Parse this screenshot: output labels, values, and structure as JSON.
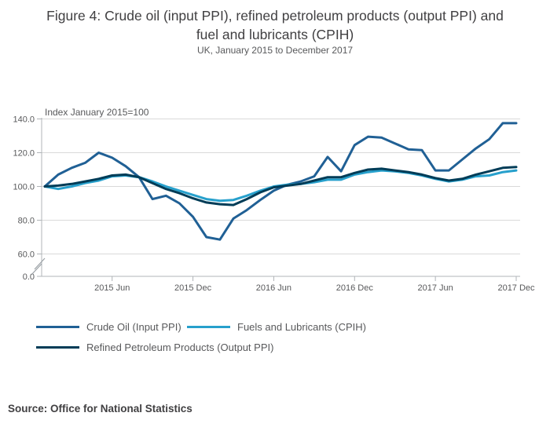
{
  "figure": {
    "title_line1": "Figure 4: Crude oil (input PPI), refined petroleum products (output PPI) and",
    "title_line2": "fuel and lubricants (CPIH)",
    "subtitle": "UK, January 2015 to December 2017",
    "source": "Source: Office for National Statistics"
  },
  "colors": {
    "crude": "#206095",
    "fuels": "#27A0CC",
    "refined": "#003C57",
    "grid": "#d9d9d9",
    "axis": "#b0b4b8",
    "tick_text": "#58595b"
  },
  "legend": {
    "items": [
      {
        "label": "Crude Oil (Input PPI)",
        "color": "#206095"
      },
      {
        "label": "Fuels and Lubricants (CPIH)",
        "color": "#27A0CC"
      },
      {
        "label": "Refined Petroleum Products (Output PPI)",
        "color": "#003C57"
      }
    ]
  },
  "chart_data": {
    "type": "line",
    "title": "Figure 4: Crude oil (input PPI), refined petroleum products (output PPI) and fuel and lubricants (CPIH)",
    "subtitle": "UK, January 2015 to December 2017",
    "axis_note": "Index January 2015=100",
    "grid": "horizontal",
    "legend_position": "bottom",
    "y_axis_break": true,
    "ylim": [
      0,
      140
    ],
    "y_ticks": [
      140,
      120,
      100,
      80,
      60,
      0
    ],
    "x": [
      "2015 Jan",
      "2015 Feb",
      "2015 Mar",
      "2015 Apr",
      "2015 May",
      "2015 Jun",
      "2015 Jul",
      "2015 Aug",
      "2015 Sep",
      "2015 Oct",
      "2015 Nov",
      "2015 Dec",
      "2016 Jan",
      "2016 Feb",
      "2016 Mar",
      "2016 Apr",
      "2016 May",
      "2016 Jun",
      "2016 Jul",
      "2016 Aug",
      "2016 Sep",
      "2016 Oct",
      "2016 Nov",
      "2016 Dec",
      "2017 Jan",
      "2017 Feb",
      "2017 Mar",
      "2017 Apr",
      "2017 May",
      "2017 Jun",
      "2017 Jul",
      "2017 Aug",
      "2017 Sep",
      "2017 Oct",
      "2017 Nov",
      "2017 Dec"
    ],
    "x_tick_labels": [
      "2015 Jun",
      "2015 Dec",
      "2016 Jun",
      "2016 Dec",
      "2017 Jun",
      "2017 Dec"
    ],
    "x_tick_indices": [
      5,
      11,
      17,
      23,
      29,
      35
    ],
    "series": [
      {
        "name": "Crude Oil (Input PPI)",
        "color": "#206095",
        "values": [
          100,
          107,
          111,
          114,
          120,
          117,
          112,
          105.5,
          92.5,
          94.5,
          90,
          82,
          70,
          68.5,
          81,
          86,
          92,
          97.5,
          101,
          103,
          106,
          117.5,
          109,
          124.5,
          129.5,
          129,
          125.5,
          122,
          121.5,
          109.5,
          109.5,
          116,
          122.5,
          128,
          137.5,
          137.5
        ]
      },
      {
        "name": "Fuels and Lubricants (CPIH)",
        "color": "#27A0CC",
        "values": [
          100,
          98.5,
          100,
          102,
          103.5,
          106,
          106.5,
          105.5,
          103,
          100,
          97.5,
          95,
          92.5,
          91.5,
          92,
          94.5,
          97.5,
          100,
          101,
          101.5,
          102.5,
          104,
          104,
          107,
          108.5,
          109.5,
          109,
          108,
          106.5,
          104.5,
          103,
          104,
          106,
          106.5,
          108.5,
          109.5
        ]
      },
      {
        "name": "Refined Petroleum Products (Output PPI)",
        "color": "#003C57",
        "values": [
          100,
          100.5,
          101.5,
          103,
          104.5,
          106.5,
          107,
          105.5,
          102,
          98.5,
          96,
          93,
          90.5,
          89.5,
          89,
          92.5,
          96.5,
          99.5,
          100.5,
          101.5,
          103.5,
          105.5,
          105.5,
          108,
          110,
          110.5,
          109.5,
          108.5,
          107,
          105,
          103.5,
          104.5,
          107,
          109,
          111,
          111.5
        ]
      }
    ]
  }
}
